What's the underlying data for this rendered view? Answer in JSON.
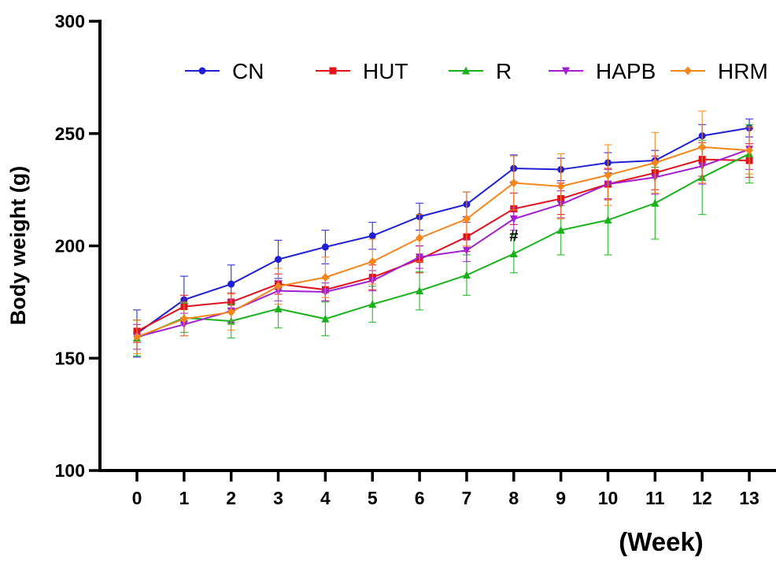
{
  "chart_data": {
    "type": "line",
    "title": "",
    "xlabel": "(Week)",
    "ylabel": "Body weight (g)",
    "x": [
      0,
      1,
      2,
      3,
      4,
      5,
      6,
      7,
      8,
      9,
      10,
      11,
      12,
      13
    ],
    "xticks": [
      "0",
      "1",
      "2",
      "3",
      "4",
      "5",
      "6",
      "7",
      "8",
      "9",
      "10",
      "11",
      "12",
      "13"
    ],
    "yticks": [
      "100",
      "150",
      "200",
      "250",
      "300"
    ],
    "ylim": [
      100,
      300
    ],
    "grid": false,
    "legend_position": "top",
    "series": [
      {
        "name": "CN",
        "color": "#1f1fd6",
        "marker": "circle",
        "values": [
          161,
          176,
          183,
          194,
          199.5,
          204.5,
          213,
          218.5,
          234.5,
          234,
          237,
          238,
          249,
          252.5
        ],
        "errors": [
          10.5,
          10.5,
          8.5,
          8.5,
          7.5,
          6,
          6,
          5.5,
          6,
          5,
          4.5,
          4.5,
          5,
          4
        ]
      },
      {
        "name": "HUT",
        "color": "#e3111a",
        "marker": "square",
        "values": [
          162,
          173,
          175,
          183,
          180.5,
          186,
          194,
          204,
          216.5,
          221,
          227.5,
          232.5,
          238.5,
          238
        ],
        "errors": [
          5,
          5,
          4,
          4.5,
          5,
          5.5,
          6,
          6.5,
          7,
          7,
          7,
          7.5,
          7.5,
          7.5
        ]
      },
      {
        "name": "R",
        "color": "#19b21b",
        "marker": "triangle-up",
        "values": [
          159,
          168,
          166.5,
          172,
          167.5,
          174,
          180,
          187,
          196.5,
          207,
          211.5,
          219,
          230.5,
          241
        ],
        "errors": [
          8,
          6.5,
          7.5,
          8.5,
          7.5,
          8,
          8.5,
          9,
          8.5,
          11,
          15.5,
          16,
          16.5,
          13
        ]
      },
      {
        "name": "HAPB",
        "color": "#a31ed1",
        "marker": "triangle-down",
        "values": [
          159.5,
          165,
          171,
          180,
          179.5,
          184.5,
          195,
          198,
          212,
          218.5,
          227.5,
          230.5,
          235.5,
          243
        ],
        "errors": [
          5.5,
          5,
          5,
          4.5,
          4,
          4.5,
          5,
          5,
          5,
          6,
          6.5,
          7.5,
          8,
          9
        ]
      },
      {
        "name": "HRM",
        "color": "#f4861b",
        "marker": "diamond",
        "values": [
          159.5,
          167.5,
          170.5,
          182,
          186,
          193,
          203.5,
          212,
          228,
          226.5,
          231.5,
          237,
          244,
          242.5
        ],
        "errors": [
          7.5,
          7.5,
          8,
          8,
          9,
          10,
          10.5,
          12,
          12,
          14.5,
          13.5,
          13.5,
          16,
          10.5
        ]
      }
    ],
    "annotations": [
      {
        "text": "#",
        "x": 8,
        "y": 204.5
      }
    ]
  }
}
